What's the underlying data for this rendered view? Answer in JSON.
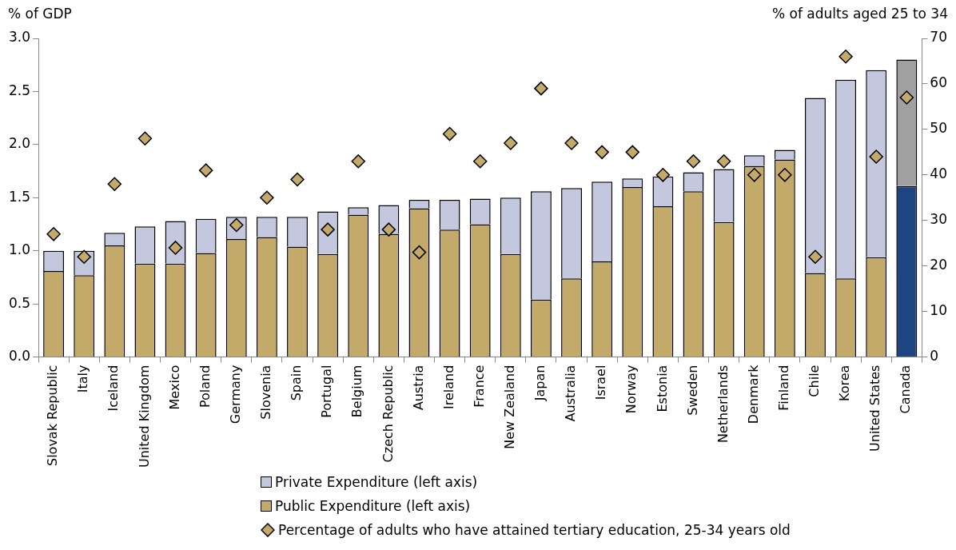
{
  "chart_data": {
    "type": "bar",
    "stacked": true,
    "ylabel": "% of GDP",
    "y2label": "% of adults aged 25 to 34",
    "legend": "bottom",
    "marker": "diamond",
    "categories": [
      "Slovak Republic",
      "Italy",
      "Iceland",
      "United Kingdom",
      "Mexico",
      "Poland",
      "Germany",
      "Slovenia",
      "Spain",
      "Portugal",
      "Belgium",
      "Czech Republic",
      "Austria",
      "Ireland",
      "France",
      "New Zealand",
      "Japan",
      "Australia",
      "Israel",
      "Norway",
      "Estonia",
      "Sweden",
      "Netherlands",
      "Denmark",
      "Finland",
      "Chile",
      "Korea",
      "United States",
      "Canada"
    ],
    "ylim": [
      0,
      3
    ],
    "yticks": [
      {
        "value": 0,
        "label": "0.0"
      },
      {
        "value": 0.5,
        "label": "0.5"
      },
      {
        "value": 1,
        "label": "1.0"
      },
      {
        "value": 1.5,
        "label": "1.5"
      },
      {
        "value": 2,
        "label": "2.0"
      },
      {
        "value": 2.5,
        "label": "2.5"
      },
      {
        "value": 3,
        "label": "3.0"
      }
    ],
    "y2lim": [
      0,
      70
    ],
    "y2ticks": [
      0,
      10,
      20,
      30,
      40,
      50,
      60,
      70
    ],
    "series": [
      {
        "name": "Public Expenditure (left axis)",
        "color": "#c4aa6a",
        "colors": [
          "#c4aa6a",
          "#c4aa6a",
          "#c4aa6a",
          "#c4aa6a",
          "#c4aa6a",
          "#c4aa6a",
          "#c4aa6a",
          "#c4aa6a",
          "#c4aa6a",
          "#c4aa6a",
          "#c4aa6a",
          "#c4aa6a",
          "#c4aa6a",
          "#c4aa6a",
          "#c4aa6a",
          "#c4aa6a",
          "#c4aa6a",
          "#c4aa6a",
          "#c4aa6a",
          "#c4aa6a",
          "#c4aa6a",
          "#c4aa6a",
          "#c4aa6a",
          "#c4aa6a",
          "#c4aa6a",
          "#c4aa6a",
          "#c4aa6a",
          "#c4aa6a",
          "#1e4582"
        ],
        "values": [
          0.81,
          0.77,
          1.05,
          0.88,
          0.88,
          0.98,
          1.11,
          1.13,
          1.04,
          0.97,
          1.34,
          1.16,
          1.4,
          1.2,
          1.25,
          0.97,
          0.54,
          0.74,
          0.9,
          1.6,
          1.42,
          1.56,
          1.27,
          1.8,
          1.86,
          0.79,
          0.74,
          0.94,
          1.61
        ]
      },
      {
        "name": "Private Expenditure (left axis)",
        "color": "#c3c8de",
        "colors": [
          "#c3c8de",
          "#c3c8de",
          "#c3c8de",
          "#c3c8de",
          "#c3c8de",
          "#c3c8de",
          "#c3c8de",
          "#c3c8de",
          "#c3c8de",
          "#c3c8de",
          "#c3c8de",
          "#c3c8de",
          "#c3c8de",
          "#c3c8de",
          "#c3c8de",
          "#c3c8de",
          "#c3c8de",
          "#c3c8de",
          "#c3c8de",
          "#c3c8de",
          "#c3c8de",
          "#c3c8de",
          "#c3c8de",
          "#c3c8de",
          "#c3c8de",
          "#c3c8de",
          "#c3c8de",
          "#c3c8de",
          "#a0a0a0"
        ],
        "values": [
          0.19,
          0.23,
          0.12,
          0.35,
          0.4,
          0.32,
          0.21,
          0.19,
          0.28,
          0.4,
          0.07,
          0.27,
          0.08,
          0.28,
          0.24,
          0.53,
          1.02,
          0.85,
          0.75,
          0.08,
          0.28,
          0.18,
          0.5,
          0.1,
          0.09,
          1.65,
          1.87,
          1.76,
          1.19
        ]
      },
      {
        "name": "Percentage of adults who have attained tertiary education, 25-34 years old",
        "type": "scatter",
        "axis": "y2",
        "color": "#c4aa6a",
        "values": [
          27,
          22,
          38,
          48,
          24,
          41,
          29,
          35,
          39,
          28,
          43,
          28,
          23,
          49,
          43,
          47,
          59,
          47,
          45,
          45,
          40,
          43,
          43,
          40,
          40,
          22,
          66,
          44,
          57
        ]
      }
    ]
  }
}
